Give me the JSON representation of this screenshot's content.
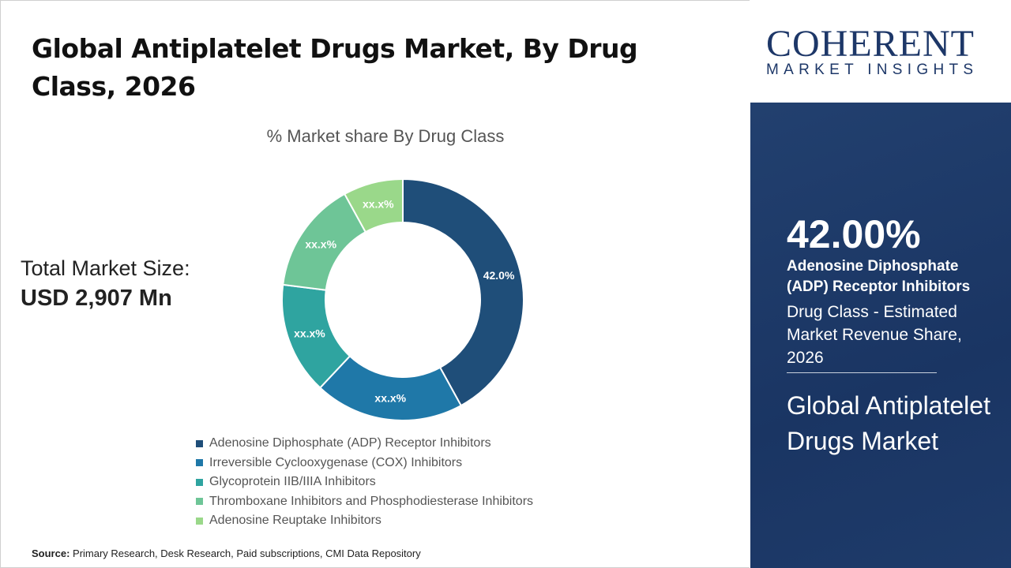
{
  "title": "Global Antiplatelet Drugs Market, By Drug Class, 2026",
  "total_market": {
    "label": "Total Market Size:",
    "value": "USD 2,907 Mn"
  },
  "source": {
    "label": "Source:",
    "text": " Primary Research, Desk Research, Paid subscriptions, CMI Data Repository"
  },
  "logo": {
    "top": "COHERENT",
    "bottom": "MARKET INSIGHTS"
  },
  "panel": {
    "value": "42.00%",
    "segment": "Adenosine Diphosphate (ADP) Receptor Inhibitors",
    "description": "Drug Class - Estimated Market Revenue Share, 2026",
    "market": "Global Antiplatelet Drugs Market"
  },
  "chart_data": {
    "type": "donut",
    "title": "% Market share By Drug Class",
    "legend_position": "bottom",
    "categories": [
      "Adenosine Diphosphate (ADP) Receptor Inhibitors",
      "Irreversible Cyclooxygenase (COX) Inhibitors",
      "Glycoprotein IIB/IIIA Inhibitors",
      "Thromboxane Inhibitors and Phosphodiesterase Inhibitors",
      "Adenosine Reuptake Inhibitors"
    ],
    "values": [
      42.0,
      20.0,
      15.0,
      15.0,
      8.0
    ],
    "labels": [
      "42.0%",
      "xx.x%",
      "xx.x%",
      "xx.x%",
      "xx.x%"
    ],
    "colors": [
      "#1f4e79",
      "#1f78a8",
      "#2fa4a0",
      "#6ec597",
      "#9ad88a"
    ]
  }
}
